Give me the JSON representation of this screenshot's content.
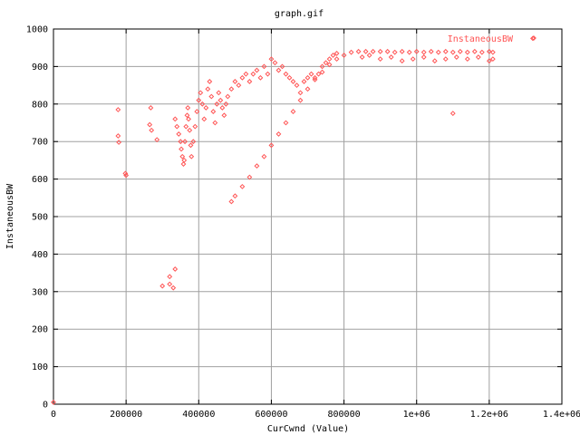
{
  "chart_data": {
    "type": "scatter",
    "title": "graph.gif",
    "xlabel": "CurCwnd (Value)",
    "ylabel": "InstaneousBW",
    "xlim": [
      0,
      1400000
    ],
    "ylim": [
      0,
      1000
    ],
    "x_ticks": [
      0,
      200000,
      400000,
      600000,
      800000,
      1000000,
      1200000,
      1400000
    ],
    "x_tick_labels": [
      "0",
      "200000",
      "400000",
      "600000",
      "800000",
      "1e+06",
      "1.2e+06",
      "1.4e+06"
    ],
    "y_ticks": [
      0,
      100,
      200,
      300,
      400,
      500,
      600,
      700,
      800,
      900,
      1000
    ],
    "y_tick_labels": [
      "0",
      "100",
      "200",
      "300",
      "400",
      "500",
      "600",
      "700",
      "800",
      "900",
      "1000"
    ],
    "grid": true,
    "legend_position": "top-right",
    "series": [
      {
        "name": "InstaneousBW",
        "color": "#ff5555",
        "marker": "diamond",
        "points": [
          [
            0,
            5
          ],
          [
            178000,
            785
          ],
          [
            178000,
            715
          ],
          [
            180000,
            698
          ],
          [
            198000,
            615
          ],
          [
            200000,
            610
          ],
          [
            265000,
            745
          ],
          [
            268000,
            790
          ],
          [
            270000,
            730
          ],
          [
            285000,
            705
          ],
          [
            300000,
            315
          ],
          [
            320000,
            340
          ],
          [
            320000,
            320
          ],
          [
            330000,
            310
          ],
          [
            335000,
            360
          ],
          [
            335000,
            760
          ],
          [
            340000,
            740
          ],
          [
            345000,
            720
          ],
          [
            350000,
            700
          ],
          [
            352000,
            680
          ],
          [
            355000,
            660
          ],
          [
            358000,
            640
          ],
          [
            360000,
            650
          ],
          [
            362000,
            700
          ],
          [
            365000,
            740
          ],
          [
            368000,
            770
          ],
          [
            370000,
            790
          ],
          [
            372000,
            760
          ],
          [
            375000,
            730
          ],
          [
            378000,
            690
          ],
          [
            380000,
            660
          ],
          [
            385000,
            700
          ],
          [
            390000,
            740
          ],
          [
            395000,
            780
          ],
          [
            400000,
            810
          ],
          [
            405000,
            830
          ],
          [
            410000,
            800
          ],
          [
            415000,
            760
          ],
          [
            420000,
            790
          ],
          [
            425000,
            840
          ],
          [
            430000,
            860
          ],
          [
            435000,
            820
          ],
          [
            440000,
            780
          ],
          [
            445000,
            750
          ],
          [
            450000,
            800
          ],
          [
            455000,
            830
          ],
          [
            460000,
            810
          ],
          [
            465000,
            790
          ],
          [
            470000,
            770
          ],
          [
            475000,
            800
          ],
          [
            480000,
            820
          ],
          [
            490000,
            840
          ],
          [
            500000,
            860
          ],
          [
            510000,
            850
          ],
          [
            520000,
            870
          ],
          [
            530000,
            880
          ],
          [
            540000,
            860
          ],
          [
            550000,
            880
          ],
          [
            560000,
            890
          ],
          [
            570000,
            870
          ],
          [
            580000,
            900
          ],
          [
            590000,
            880
          ],
          [
            600000,
            920
          ],
          [
            610000,
            910
          ],
          [
            620000,
            890
          ],
          [
            630000,
            900
          ],
          [
            640000,
            880
          ],
          [
            650000,
            870
          ],
          [
            660000,
            860
          ],
          [
            670000,
            850
          ],
          [
            680000,
            830
          ],
          [
            690000,
            860
          ],
          [
            700000,
            870
          ],
          [
            710000,
            880
          ],
          [
            720000,
            870
          ],
          [
            730000,
            880
          ],
          [
            740000,
            900
          ],
          [
            750000,
            910
          ],
          [
            760000,
            920
          ],
          [
            770000,
            930
          ],
          [
            780000,
            935
          ],
          [
            490000,
            540
          ],
          [
            500000,
            555
          ],
          [
            520000,
            580
          ],
          [
            540000,
            605
          ],
          [
            560000,
            635
          ],
          [
            580000,
            660
          ],
          [
            600000,
            690
          ],
          [
            620000,
            720
          ],
          [
            640000,
            750
          ],
          [
            660000,
            780
          ],
          [
            680000,
            810
          ],
          [
            700000,
            840
          ],
          [
            720000,
            865
          ],
          [
            740000,
            885
          ],
          [
            760000,
            905
          ],
          [
            780000,
            920
          ],
          [
            800000,
            930
          ],
          [
            820000,
            938
          ],
          [
            840000,
            940
          ],
          [
            860000,
            940
          ],
          [
            880000,
            940
          ],
          [
            900000,
            940
          ],
          [
            920000,
            940
          ],
          [
            940000,
            938
          ],
          [
            960000,
            940
          ],
          [
            980000,
            938
          ],
          [
            1000000,
            940
          ],
          [
            1020000,
            938
          ],
          [
            1040000,
            940
          ],
          [
            1060000,
            938
          ],
          [
            1080000,
            940
          ],
          [
            1100000,
            938
          ],
          [
            1120000,
            940
          ],
          [
            1140000,
            938
          ],
          [
            1160000,
            940
          ],
          [
            1180000,
            938
          ],
          [
            1200000,
            940
          ],
          [
            1210000,
            938
          ],
          [
            1100000,
            775
          ],
          [
            1320000,
            975
          ],
          [
            850000,
            925
          ],
          [
            870000,
            930
          ],
          [
            900000,
            920
          ],
          [
            930000,
            925
          ],
          [
            960000,
            915
          ],
          [
            990000,
            920
          ],
          [
            1020000,
            925
          ],
          [
            1050000,
            915
          ],
          [
            1080000,
            920
          ],
          [
            1110000,
            925
          ],
          [
            1140000,
            920
          ],
          [
            1170000,
            925
          ],
          [
            1200000,
            915
          ],
          [
            1210000,
            920
          ]
        ]
      }
    ]
  }
}
